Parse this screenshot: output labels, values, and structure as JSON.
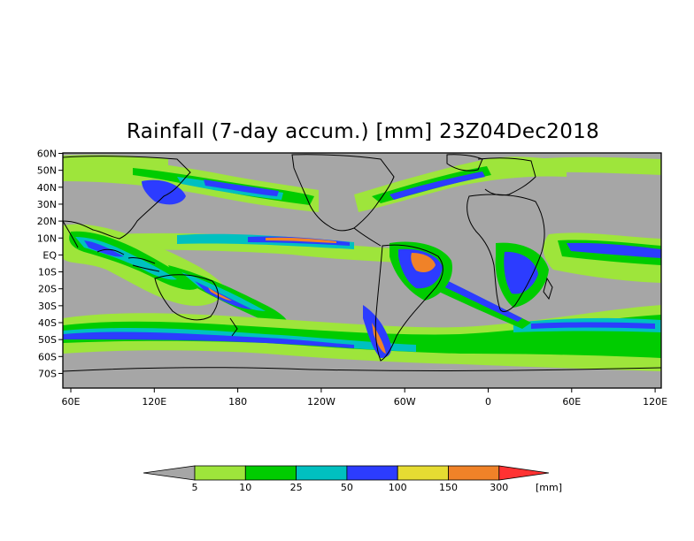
{
  "title": "Rainfall (7-day accum.) [mm] 23Z04Dec2018",
  "lat_ticks": [
    "60N",
    "50N",
    "40N",
    "30N",
    "20N",
    "10N",
    "EQ",
    "10S",
    "20S",
    "30S",
    "40S",
    "50S",
    "60S",
    "70S"
  ],
  "lon_ticks": [
    "60E",
    "120E",
    "180",
    "120W",
    "60W",
    "0",
    "60E",
    "120E"
  ],
  "colorbar": {
    "thresholds": [
      "5",
      "10",
      "25",
      "50",
      "100",
      "150",
      "300"
    ],
    "unit": "[mm]",
    "colors": {
      "below_5": "#a6a6a6",
      "5_10": "#9ee53b",
      "10_25": "#00cc00",
      "25_50": "#00c0c0",
      "50_100": "#2c3cff",
      "100_150": "#e6dc32",
      "150_300": "#f08228",
      "above_300": "#ff3232"
    }
  },
  "map": {
    "background": "#a6a6a6",
    "outline_color": "#000000"
  }
}
